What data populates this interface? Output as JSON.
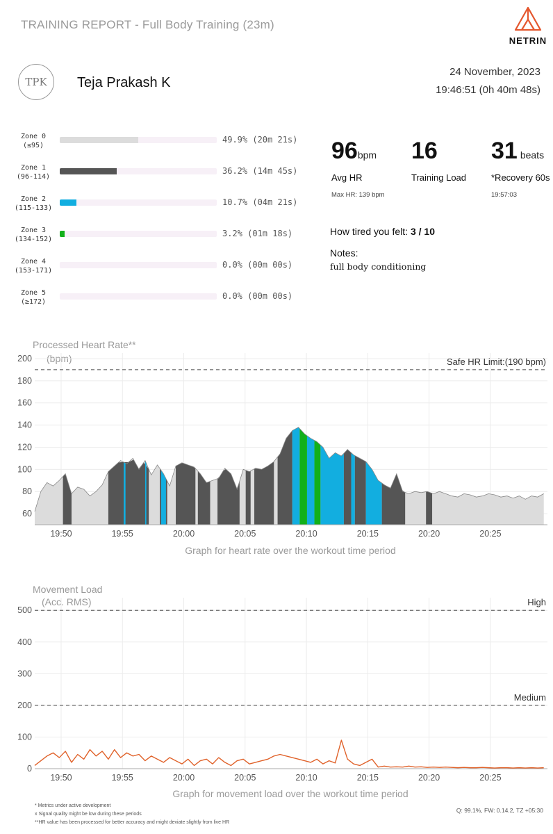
{
  "header": {
    "title": "TRAINING REPORT - Full Body Training (23m)",
    "brand": "NETRIN",
    "brand_color": "#e4572e"
  },
  "user": {
    "initials": "TPK",
    "name": "Teja Prakash K",
    "date": "24 November, 2023",
    "time": "19:46:51 (0h 40m 48s)"
  },
  "zones": [
    {
      "name": "Zone 0",
      "range": "(≤95)",
      "percent": 49.9,
      "value": "49.9% (20m 21s)",
      "color": "#dcdcdc"
    },
    {
      "name": "Zone 1",
      "range": "(96-114)",
      "percent": 36.2,
      "value": "36.2% (14m 45s)",
      "color": "#555555"
    },
    {
      "name": "Zone 2",
      "range": "(115-133)",
      "percent": 10.7,
      "value": "10.7% (04m 21s)",
      "color": "#12aee0"
    },
    {
      "name": "Zone 3",
      "range": "(134-152)",
      "percent": 3.2,
      "value": "3.2% (01m 18s)",
      "color": "#12b01a"
    },
    {
      "name": "Zone 4",
      "range": "(153-171)",
      "percent": 0.0,
      "value": "0.0% (00m 00s)",
      "color": "#e0a020"
    },
    {
      "name": "Zone 5",
      "range": "(≥172)",
      "percent": 0.0,
      "value": "0.0% (00m 00s)",
      "color": "#e03020"
    }
  ],
  "stats": {
    "avg_hr": {
      "value": "96",
      "unit": "bpm",
      "label": "Avg HR",
      "sub": "Max HR: 139 bpm"
    },
    "training_load": {
      "value": "16",
      "label": "Training Load"
    },
    "recovery": {
      "value": "31",
      "unit": "beats",
      "label": "*Recovery 60s",
      "sub": "19:57:03"
    }
  },
  "feedback": {
    "tired_label": "How tired you felt:",
    "tired_value": "3 / 10",
    "notes_label": "Notes:",
    "notes_text": "full body conditioning"
  },
  "chart_data": [
    {
      "type": "area",
      "title": "Processed Heart Rate**",
      "ylabel": "(bpm)",
      "xlabel": "",
      "caption": "Graph for heart rate over the workout time period",
      "x_unit": "minutes after 19:46:51",
      "xlim": [
        0,
        41.8
      ],
      "ylim": [
        50,
        205
      ],
      "yticks": [
        60,
        80,
        100,
        120,
        140,
        160,
        180,
        200
      ],
      "xticks": [
        {
          "t": 2.15,
          "label": "19:50"
        },
        {
          "t": 7.15,
          "label": "19:55"
        },
        {
          "t": 12.15,
          "label": "20:00"
        },
        {
          "t": 17.15,
          "label": "20:05"
        },
        {
          "t": 22.15,
          "label": "20:10"
        },
        {
          "t": 27.15,
          "label": "20:15"
        },
        {
          "t": 32.15,
          "label": "20:20"
        },
        {
          "t": 37.15,
          "label": "20:25"
        }
      ],
      "reference_line": {
        "value": 190,
        "label": "Safe HR Limit:(190 bpm)"
      },
      "grid": true,
      "colors": {
        "zone0": "#dcdcdc",
        "zone1": "#555555",
        "zone2": "#12aee0",
        "zone3": "#12b01a",
        "outline": "#888888"
      },
      "series": [
        {
          "x": [
            0,
            0.5,
            1,
            1.5,
            2,
            2.5,
            3,
            3.5,
            4,
            4.5,
            5,
            5.5,
            6,
            6.5,
            7,
            7.5,
            8,
            8.5,
            9,
            9.5,
            10,
            10.5,
            11,
            11.5,
            12,
            12.5,
            13,
            13.5,
            14,
            14.5,
            15,
            15.5,
            16,
            16.5,
            17,
            17.5,
            18,
            18.5,
            19,
            19.5,
            20,
            20.5,
            21,
            21.5,
            22,
            22.5,
            23,
            23.5,
            24,
            24.5,
            25,
            25.5,
            26,
            26.5,
            27,
            27.5,
            28,
            28.5,
            29,
            29.5,
            30,
            30.5,
            31,
            31.5,
            32,
            32.5,
            33,
            33.5,
            34,
            34.5,
            35,
            35.5,
            36,
            36.5,
            37,
            37.5,
            38,
            38.5,
            39,
            39.5,
            40,
            40.5,
            41,
            41.5
          ],
          "y": [
            62,
            80,
            88,
            85,
            90,
            96,
            78,
            84,
            82,
            76,
            80,
            86,
            98,
            103,
            108,
            105,
            110,
            100,
            108,
            95,
            104,
            96,
            85,
            103,
            106,
            104,
            102,
            96,
            88,
            90,
            92,
            101,
            96,
            82,
            100,
            98,
            101,
            100,
            103,
            107,
            114,
            128,
            135,
            138,
            132,
            128,
            125,
            120,
            110,
            115,
            112,
            118,
            113,
            110,
            107,
            100,
            90,
            86,
            83,
            96,
            80,
            78,
            80,
            79,
            80,
            78,
            80,
            78,
            76,
            75,
            78,
            77,
            75,
            76,
            78,
            77,
            75,
            76,
            74,
            76,
            73,
            76,
            75,
            78
          ]
        }
      ],
      "zone_segments": [
        {
          "from": 2.3,
          "to": 3.0,
          "zone": 1
        },
        {
          "from": 6.0,
          "to": 9.3,
          "zone": 1
        },
        {
          "from": 7.25,
          "to": 7.4,
          "zone": 2
        },
        {
          "from": 9.0,
          "to": 9.1,
          "zone": 2
        },
        {
          "from": 10.2,
          "to": 10.8,
          "zone": 1
        },
        {
          "from": 10.3,
          "to": 10.7,
          "zone": 2
        },
        {
          "from": 11.5,
          "to": 13.1,
          "zone": 1
        },
        {
          "from": 13.3,
          "to": 14.3,
          "zone": 1
        },
        {
          "from": 14.9,
          "to": 16.7,
          "zone": 1
        },
        {
          "from": 17.2,
          "to": 17.6,
          "zone": 1
        },
        {
          "from": 17.9,
          "to": 19.5,
          "zone": 1
        },
        {
          "from": 19.8,
          "to": 21.0,
          "zone": 1
        },
        {
          "from": 21.0,
          "to": 21.6,
          "zone": 2
        },
        {
          "from": 21.6,
          "to": 22.2,
          "zone": 3
        },
        {
          "from": 22.2,
          "to": 22.8,
          "zone": 2
        },
        {
          "from": 22.8,
          "to": 23.3,
          "zone": 3
        },
        {
          "from": 23.3,
          "to": 25.2,
          "zone": 2
        },
        {
          "from": 25.2,
          "to": 25.8,
          "zone": 1
        },
        {
          "from": 25.8,
          "to": 26.1,
          "zone": 2
        },
        {
          "from": 26.1,
          "to": 27.0,
          "zone": 1
        },
        {
          "from": 27.0,
          "to": 28.3,
          "zone": 2
        },
        {
          "from": 28.3,
          "to": 30.2,
          "zone": 1
        },
        {
          "from": 31.9,
          "to": 32.4,
          "zone": 1
        }
      ]
    },
    {
      "type": "line",
      "title": "Movement Load",
      "ylabel": "(Acc. RMS)",
      "xlabel": "",
      "caption": "Graph for movement load over the workout time period",
      "x_unit": "minutes after 19:46:51",
      "xlim": [
        0,
        41.8
      ],
      "ylim": [
        0,
        540
      ],
      "yticks": [
        0,
        100,
        200,
        300,
        400,
        500
      ],
      "xticks": [
        {
          "t": 2.15,
          "label": "19:50"
        },
        {
          "t": 7.15,
          "label": "19:55"
        },
        {
          "t": 12.15,
          "label": "20:00"
        },
        {
          "t": 17.15,
          "label": "20:05"
        },
        {
          "t": 22.15,
          "label": "20:10"
        },
        {
          "t": 27.15,
          "label": "20:15"
        },
        {
          "t": 32.15,
          "label": "20:20"
        },
        {
          "t": 37.15,
          "label": "20:25"
        }
      ],
      "reference_lines": [
        {
          "value": 500,
          "label": "High"
        },
        {
          "value": 200,
          "label": "Medium"
        }
      ],
      "grid": true,
      "color": "#e0622a",
      "series": [
        {
          "x": [
            0,
            0.5,
            1,
            1.5,
            2,
            2.5,
            3,
            3.5,
            4,
            4.5,
            5,
            5.5,
            6,
            6.5,
            7,
            7.5,
            8,
            8.5,
            9,
            9.5,
            10,
            10.5,
            11,
            11.5,
            12,
            12.5,
            13,
            13.5,
            14,
            14.5,
            15,
            15.5,
            16,
            16.5,
            17,
            17.5,
            18,
            18.5,
            19,
            19.5,
            20,
            20.5,
            21,
            21.5,
            22,
            22.5,
            23,
            23.5,
            24,
            24.5,
            25,
            25.5,
            26,
            26.5,
            27,
            27.5,
            28,
            28.5,
            29,
            29.5,
            30,
            30.5,
            31,
            31.5,
            32,
            32.5,
            33,
            33.5,
            34,
            34.5,
            35,
            35.5,
            36,
            36.5,
            37,
            37.5,
            38,
            38.5,
            39,
            39.5,
            40,
            40.5,
            41,
            41.5
          ],
          "y": [
            10,
            25,
            40,
            50,
            35,
            55,
            20,
            45,
            30,
            60,
            40,
            55,
            30,
            60,
            35,
            50,
            40,
            45,
            25,
            40,
            30,
            20,
            35,
            25,
            15,
            30,
            10,
            25,
            30,
            15,
            35,
            20,
            10,
            25,
            30,
            15,
            20,
            25,
            30,
            40,
            45,
            40,
            35,
            30,
            25,
            20,
            30,
            15,
            25,
            18,
            90,
            30,
            15,
            10,
            20,
            30,
            5,
            8,
            5,
            6,
            5,
            8,
            5,
            6,
            4,
            5,
            4,
            5,
            4,
            3,
            4,
            3,
            3,
            4,
            3,
            2,
            3,
            3,
            2,
            3,
            2,
            3,
            2,
            3
          ]
        }
      ]
    }
  ],
  "footnotes": [
    "* Metrics under active development",
    "x Signal quality might be low during these periods",
    "**HR value has been processed for better accuracy and might deviate slightly from live HR"
  ],
  "footer_right": "Q: 99.1%, FW: 0.14.2, TZ +05:30"
}
